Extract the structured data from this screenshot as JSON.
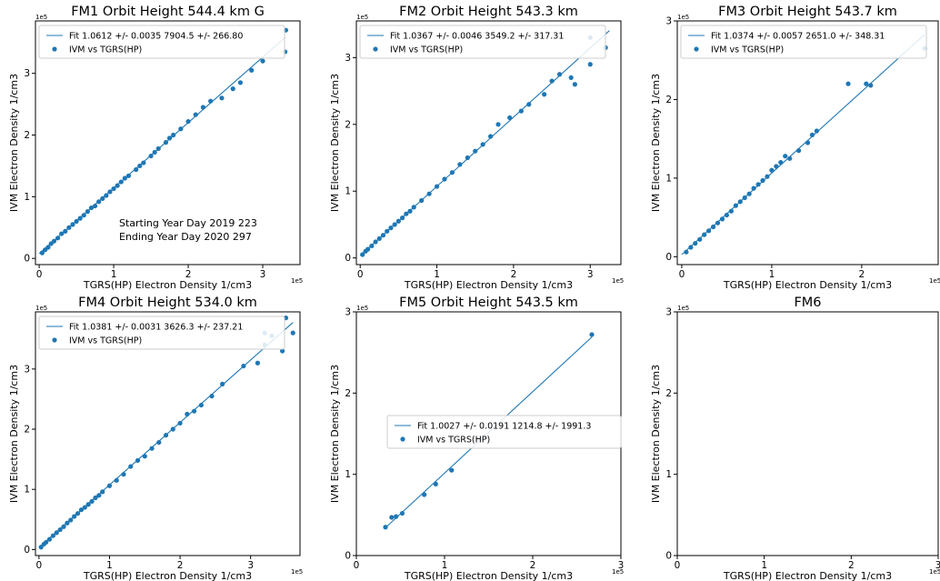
{
  "figure": {
    "colors": {
      "series": "#1f77b4",
      "axes": "#000000",
      "background": "#ffffff"
    }
  },
  "chart_data": [
    {
      "type": "scatter",
      "title": "FM1 Orbit Height  544.4 km G",
      "xlabel": "TGRS(HP)  Electron Density 1/cm3",
      "ylabel": "IVM Electron Density 1/cm3",
      "x_exponent": "1e5",
      "y_exponent": "1e5",
      "xlim": [
        -0.05,
        3.5
      ],
      "ylim": [
        -0.1,
        3.85
      ],
      "xticks": [
        0,
        1,
        2,
        3
      ],
      "xticklabels": [
        "0",
        "1",
        "2",
        "3"
      ],
      "yticks": [
        0,
        1,
        2,
        3
      ],
      "yticklabels": [
        "0",
        "1",
        "2",
        "3"
      ],
      "legend": {
        "fit_label": "Fit 1.0612 +/- 0.0035 7904.5 +/- 266.80",
        "scatter_label": "IVM vs TGRS(HP)",
        "location": "upper-left"
      },
      "annotation": [
        "Starting Year Day 2019 223",
        "Ending Year Day 2020 297"
      ],
      "fit": {
        "slope": 1.0612,
        "intercept": 0.079,
        "x_range": [
          0,
          3.3
        ]
      },
      "series": [
        {
          "name": "IVM vs TGRS(HP)",
          "points": [
            [
              0.04,
              0.09
            ],
            [
              0.08,
              0.14
            ],
            [
              0.12,
              0.18
            ],
            [
              0.16,
              0.24
            ],
            [
              0.2,
              0.28
            ],
            [
              0.25,
              0.33
            ],
            [
              0.3,
              0.4
            ],
            [
              0.35,
              0.44
            ],
            [
              0.4,
              0.5
            ],
            [
              0.45,
              0.55
            ],
            [
              0.5,
              0.6
            ],
            [
              0.55,
              0.65
            ],
            [
              0.6,
              0.7
            ],
            [
              0.65,
              0.76
            ],
            [
              0.7,
              0.82
            ],
            [
              0.75,
              0.85
            ],
            [
              0.8,
              0.92
            ],
            [
              0.85,
              0.97
            ],
            [
              0.9,
              1.02
            ],
            [
              0.95,
              1.08
            ],
            [
              1.0,
              1.13
            ],
            [
              1.05,
              1.18
            ],
            [
              1.1,
              1.24
            ],
            [
              1.15,
              1.3
            ],
            [
              1.2,
              1.34
            ],
            [
              1.3,
              1.44
            ],
            [
              1.35,
              1.5
            ],
            [
              1.4,
              1.55
            ],
            [
              1.5,
              1.66
            ],
            [
              1.55,
              1.72
            ],
            [
              1.6,
              1.78
            ],
            [
              1.7,
              1.88
            ],
            [
              1.75,
              1.95
            ],
            [
              1.8,
              2.0
            ],
            [
              1.9,
              2.1
            ],
            [
              2.0,
              2.22
            ],
            [
              2.1,
              2.33
            ],
            [
              2.2,
              2.45
            ],
            [
              2.3,
              2.55
            ],
            [
              2.45,
              2.6
            ],
            [
              2.6,
              2.75
            ],
            [
              2.7,
              2.85
            ],
            [
              2.85,
              3.05
            ],
            [
              3.0,
              3.2
            ],
            [
              3.3,
              3.35
            ],
            [
              3.31,
              3.7
            ]
          ]
        }
      ]
    },
    {
      "type": "scatter",
      "title": "FM2 Orbit Height  543.3 km",
      "xlabel": "TGRS(HP)  Electron Density 1/cm3",
      "ylabel": "IVM Electron Density 1/cm3",
      "x_exponent": "1e5",
      "y_exponent": "1e5",
      "xlim": [
        -0.05,
        3.4
      ],
      "ylim": [
        -0.1,
        3.55
      ],
      "xticks": [
        0,
        1,
        2,
        3
      ],
      "xticklabels": [
        "0",
        "1",
        "2",
        "3"
      ],
      "yticks": [
        0,
        1,
        2,
        3
      ],
      "yticklabels": [
        "0",
        "1",
        "2",
        "3"
      ],
      "legend": {
        "fit_label": "Fit 1.0367 +/- 0.0046 3549.2 +/- 317.31",
        "scatter_label": "IVM vs TGRS(HP)",
        "location": "upper-left"
      },
      "annotation": [],
      "fit": {
        "slope": 1.0367,
        "intercept": 0.035,
        "x_range": [
          0,
          3.25
        ]
      },
      "series": [
        {
          "name": "IVM vs TGRS(HP)",
          "points": [
            [
              0.03,
              0.05
            ],
            [
              0.07,
              0.1
            ],
            [
              0.1,
              0.13
            ],
            [
              0.15,
              0.18
            ],
            [
              0.2,
              0.24
            ],
            [
              0.25,
              0.29
            ],
            [
              0.3,
              0.34
            ],
            [
              0.35,
              0.4
            ],
            [
              0.4,
              0.45
            ],
            [
              0.45,
              0.5
            ],
            [
              0.5,
              0.55
            ],
            [
              0.55,
              0.6
            ],
            [
              0.6,
              0.66
            ],
            [
              0.65,
              0.7
            ],
            [
              0.7,
              0.76
            ],
            [
              0.8,
              0.86
            ],
            [
              0.9,
              0.96
            ],
            [
              1.0,
              1.07
            ],
            [
              1.1,
              1.18
            ],
            [
              1.2,
              1.28
            ],
            [
              1.3,
              1.4
            ],
            [
              1.4,
              1.5
            ],
            [
              1.5,
              1.6
            ],
            [
              1.6,
              1.7
            ],
            [
              1.7,
              1.82
            ],
            [
              1.8,
              2.0
            ],
            [
              1.95,
              2.1
            ],
            [
              2.1,
              2.2
            ],
            [
              2.2,
              2.3
            ],
            [
              2.4,
              2.45
            ],
            [
              2.5,
              2.65
            ],
            [
              2.6,
              2.75
            ],
            [
              2.75,
              2.7
            ],
            [
              2.8,
              2.6
            ],
            [
              3.0,
              2.9
            ],
            [
              3.0,
              3.3
            ],
            [
              3.2,
              3.15
            ]
          ]
        }
      ]
    },
    {
      "type": "scatter",
      "title": "FM3 Orbit Height  543.7 km",
      "xlabel": "TGRS(HP) Electron Density 1/cm3",
      "ylabel": "IVM  Electron Density 1/cm3",
      "x_exponent": "1e5",
      "y_exponent": "1e5",
      "xlim": [
        -0.05,
        2.85
      ],
      "ylim": [
        -0.1,
        3.0
      ],
      "xticks": [
        0,
        1,
        2
      ],
      "xticklabels": [
        "0",
        "1",
        "2"
      ],
      "yticks": [
        0,
        1,
        2,
        3
      ],
      "yticklabels": [
        "0",
        "1",
        "2",
        "3"
      ],
      "legend": {
        "fit_label": "Fit 1.0374 +/- 0.0057 2651.0 +/- 348.31",
        "scatter_label": "IVM vs TGRS(HP)",
        "location": "upper-left"
      },
      "annotation": [],
      "fit": {
        "slope": 1.0374,
        "intercept": 0.027,
        "x_range": [
          0,
          2.7
        ]
      },
      "series": [
        {
          "name": "IVM vs TGRS(HP)",
          "points": [
            [
              0.05,
              0.06
            ],
            [
              0.1,
              0.12
            ],
            [
              0.15,
              0.17
            ],
            [
              0.2,
              0.22
            ],
            [
              0.25,
              0.28
            ],
            [
              0.3,
              0.33
            ],
            [
              0.35,
              0.38
            ],
            [
              0.4,
              0.43
            ],
            [
              0.45,
              0.48
            ],
            [
              0.5,
              0.53
            ],
            [
              0.55,
              0.58
            ],
            [
              0.6,
              0.65
            ],
            [
              0.65,
              0.7
            ],
            [
              0.7,
              0.75
            ],
            [
              0.75,
              0.8
            ],
            [
              0.8,
              0.87
            ],
            [
              0.85,
              0.92
            ],
            [
              0.9,
              0.97
            ],
            [
              0.95,
              1.02
            ],
            [
              1.0,
              1.1
            ],
            [
              1.05,
              1.15
            ],
            [
              1.1,
              1.2
            ],
            [
              1.15,
              1.28
            ],
            [
              1.2,
              1.25
            ],
            [
              1.3,
              1.35
            ],
            [
              1.4,
              1.45
            ],
            [
              1.45,
              1.55
            ],
            [
              1.5,
              1.6
            ],
            [
              1.85,
              2.2
            ],
            [
              2.05,
              2.2
            ],
            [
              2.1,
              2.18
            ],
            [
              2.7,
              2.65
            ]
          ]
        }
      ]
    },
    {
      "type": "scatter",
      "title": "FM4 Orbit Height  534.0 km",
      "xlabel": "TGRS(HP) Electron Density 1/cm3",
      "ylabel": "IVM  Electron Density 1/cm3",
      "x_exponent": "1e5",
      "y_exponent": "1e5",
      "xlim": [
        -0.05,
        3.7
      ],
      "ylim": [
        -0.1,
        3.95
      ],
      "xticks": [
        0,
        1,
        2,
        3
      ],
      "xticklabels": [
        "0",
        "1",
        "2",
        "3"
      ],
      "yticks": [
        0,
        1,
        2,
        3
      ],
      "yticklabels": [
        "0",
        "1",
        "2",
        "3"
      ],
      "legend": {
        "fit_label": "Fit 1.0381 +/- 0.0031 3626.3 +/- 237.21",
        "scatter_label": "IVM vs TGRS(HP)",
        "location": "upper-left"
      },
      "annotation": [],
      "fit": {
        "slope": 1.0381,
        "intercept": 0.036,
        "x_range": [
          0,
          3.6
        ]
      },
      "series": [
        {
          "name": "IVM vs TGRS(HP)",
          "points": [
            [
              0.03,
              0.04
            ],
            [
              0.07,
              0.09
            ],
            [
              0.1,
              0.12
            ],
            [
              0.15,
              0.17
            ],
            [
              0.2,
              0.23
            ],
            [
              0.25,
              0.28
            ],
            [
              0.3,
              0.33
            ],
            [
              0.35,
              0.38
            ],
            [
              0.4,
              0.44
            ],
            [
              0.45,
              0.49
            ],
            [
              0.5,
              0.55
            ],
            [
              0.55,
              0.6
            ],
            [
              0.6,
              0.66
            ],
            [
              0.65,
              0.7
            ],
            [
              0.7,
              0.75
            ],
            [
              0.75,
              0.8
            ],
            [
              0.8,
              0.86
            ],
            [
              0.85,
              0.9
            ],
            [
              0.9,
              0.96
            ],
            [
              1.0,
              1.06
            ],
            [
              1.1,
              1.15
            ],
            [
              1.2,
              1.25
            ],
            [
              1.3,
              1.38
            ],
            [
              1.4,
              1.48
            ],
            [
              1.5,
              1.55
            ],
            [
              1.6,
              1.68
            ],
            [
              1.7,
              1.78
            ],
            [
              1.8,
              1.9
            ],
            [
              1.9,
              2.0
            ],
            [
              2.0,
              2.1
            ],
            [
              2.1,
              2.25
            ],
            [
              2.2,
              2.3
            ],
            [
              2.3,
              2.4
            ],
            [
              2.45,
              2.55
            ],
            [
              2.6,
              2.75
            ],
            [
              2.9,
              3.05
            ],
            [
              3.1,
              3.1
            ],
            [
              3.2,
              3.4
            ],
            [
              3.2,
              3.6
            ],
            [
              3.3,
              3.55
            ],
            [
              3.45,
              3.3
            ],
            [
              3.5,
              3.85
            ],
            [
              3.6,
              3.6
            ]
          ]
        }
      ]
    },
    {
      "type": "scatter",
      "title": "FM5 Orbit Height  543.5 km",
      "xlabel": "TGRS(HP) Electron Density 1/cm3",
      "ylabel": "IVM  Electron Density 1/cm3",
      "x_exponent": "1e5",
      "y_exponent": "1e5",
      "xlim": [
        0,
        3.0
      ],
      "ylim": [
        0,
        3.0
      ],
      "xticks": [
        0,
        1,
        2,
        3
      ],
      "xticklabels": [
        "0",
        "1",
        "2",
        "3"
      ],
      "yticks": [
        0,
        1,
        2,
        3
      ],
      "yticklabels": [
        "0",
        "1",
        "2",
        "3"
      ],
      "legend": {
        "fit_label": "Fit 1.0027 +/- 0.0191 1214.8 +/- 1991.3",
        "scatter_label": "IVM vs TGRS(HP)",
        "location": "center"
      },
      "annotation": [],
      "fit": {
        "slope": 1.0027,
        "intercept": 0.012,
        "x_range": [
          0.33,
          2.67
        ]
      },
      "series": [
        {
          "name": "IVM vs TGRS(HP)",
          "points": [
            [
              0.33,
              0.35
            ],
            [
              0.4,
              0.47
            ],
            [
              0.45,
              0.48
            ],
            [
              0.52,
              0.52
            ],
            [
              0.77,
              0.75
            ],
            [
              0.9,
              0.88
            ],
            [
              1.08,
              1.05
            ],
            [
              2.67,
              2.72
            ]
          ]
        }
      ]
    },
    {
      "type": "scatter",
      "title": "FM6",
      "xlabel": "TGRS(HP) Electron Density 1/cm3",
      "ylabel": "IVM  Electron Density 1/cm3",
      "x_exponent": "1e5",
      "y_exponent": "1e5",
      "xlim": [
        0,
        3.0
      ],
      "ylim": [
        0,
        3.0
      ],
      "xticks": [
        0,
        1,
        2,
        3
      ],
      "xticklabels": [
        "0",
        "1",
        "2",
        "3"
      ],
      "yticks": [
        0,
        1,
        2,
        3
      ],
      "yticklabels": [
        "0",
        "1",
        "2",
        "3"
      ],
      "legend": null,
      "annotation": [],
      "fit": null,
      "series": []
    }
  ]
}
